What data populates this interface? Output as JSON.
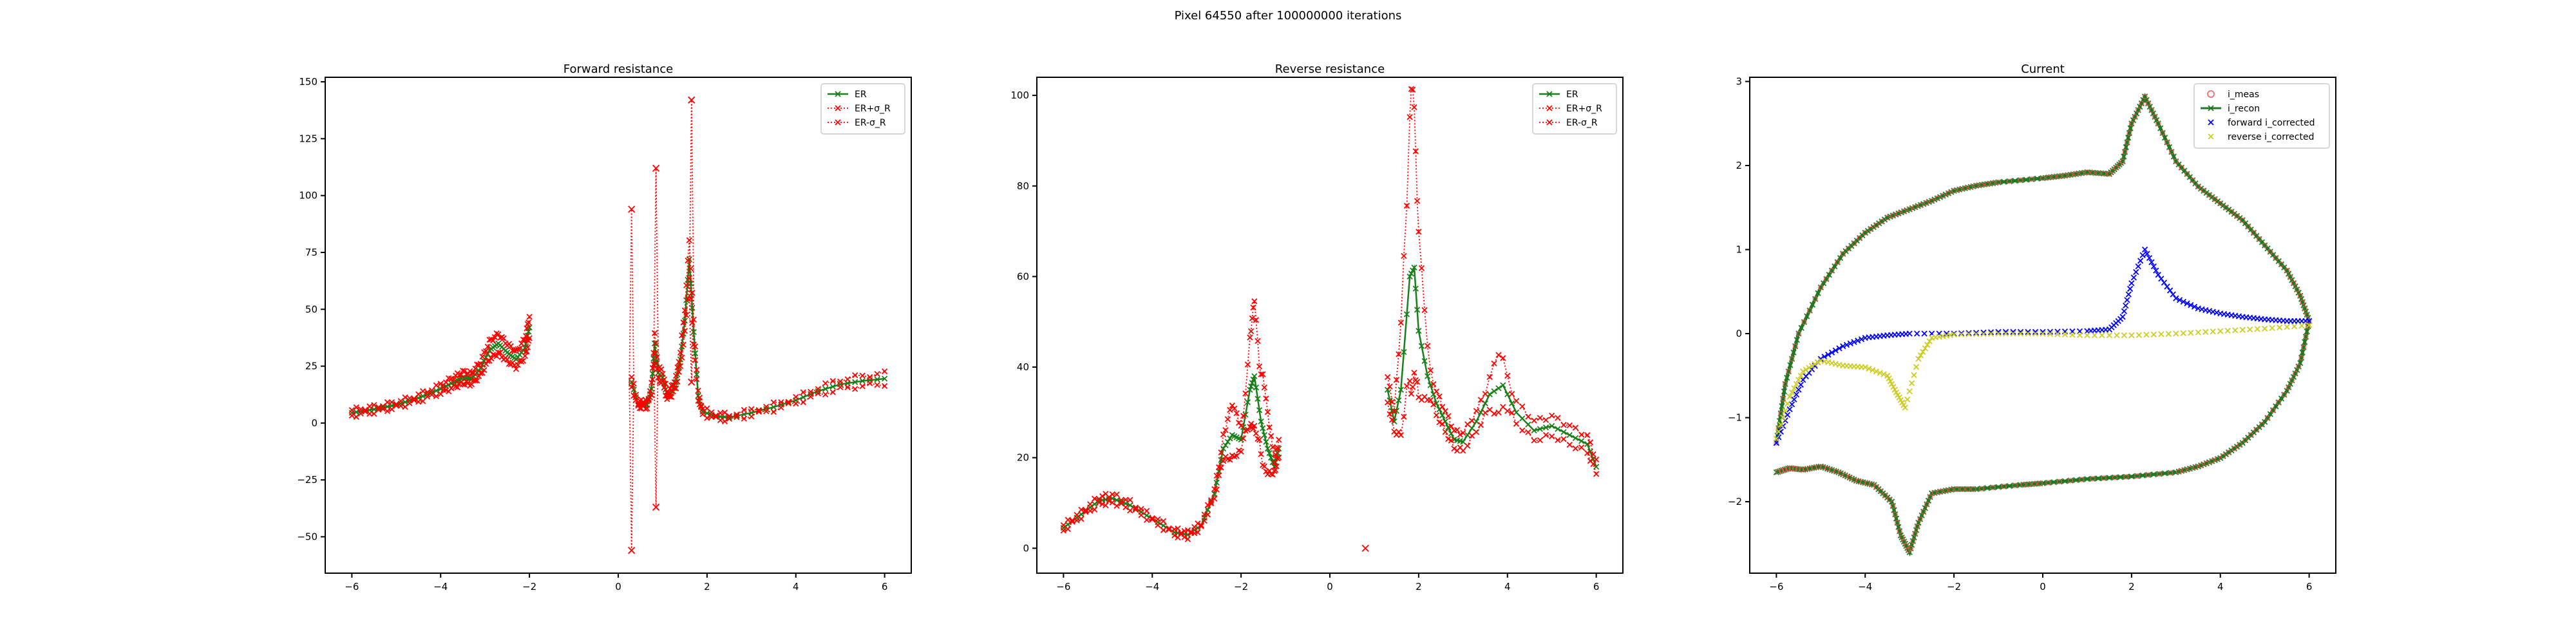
{
  "figure": {
    "title": "Pixel 64550 after 100000000 iterations"
  },
  "colors": {
    "er": "#1a7f1a",
    "er_sigma": "#ff0000",
    "i_meas": "#ff5555",
    "i_recon": "#227722",
    "forward_corrected": "#0000ff",
    "reverse_corrected": "#cccc22"
  },
  "chart_data": [
    {
      "type": "line",
      "title": "Forward resistance",
      "xlim": [
        -6.6,
        6.6
      ],
      "ylim": [
        -66,
        152
      ],
      "x_ticks": [
        -6,
        -4,
        -2,
        0,
        2,
        4,
        6
      ],
      "y_ticks": [
        -50,
        -25,
        0,
        25,
        50,
        75,
        100,
        125,
        150
      ],
      "legend": {
        "placement": "top-right",
        "entries": [
          "ER",
          "ER+σ_R",
          "ER-σ_R"
        ]
      },
      "anchors": {
        "segments": [
          [
            [
              -6.0,
              4.5
            ],
            [
              -5.5,
              6.0
            ],
            [
              -5.0,
              8.0
            ],
            [
              -4.5,
              11.0
            ],
            [
              -4.0,
              15.0
            ],
            [
              -3.7,
              18.0
            ],
            [
              -3.5,
              20.0
            ],
            [
              -3.3,
              19.5
            ],
            [
              -3.1,
              24.0
            ],
            [
              -2.9,
              32.0
            ],
            [
              -2.7,
              35.0
            ],
            [
              -2.5,
              31.0
            ],
            [
              -2.3,
              28.0
            ],
            [
              -2.1,
              33.0
            ],
            [
              -2.0,
              42.0
            ]
          ],
          [
            [
              0.3,
              18.0
            ],
            [
              0.45,
              8.0
            ],
            [
              0.55,
              8.5
            ],
            [
              0.65,
              8.0
            ],
            [
              0.75,
              15.0
            ],
            [
              0.82,
              35.0
            ],
            [
              0.9,
              22.0
            ],
            [
              1.0,
              20.0
            ],
            [
              1.1,
              12.0
            ],
            [
              1.2,
              14.0
            ],
            [
              1.3,
              18.0
            ],
            [
              1.4,
              28.0
            ],
            [
              1.5,
              45.0
            ],
            [
              1.6,
              72.0
            ],
            [
              1.7,
              40.0
            ],
            [
              1.8,
              12.0
            ],
            [
              1.9,
              5.0
            ],
            [
              2.2,
              3.0
            ],
            [
              2.5,
              2.5
            ],
            [
              3.0,
              4.5
            ],
            [
              3.5,
              7.0
            ],
            [
              4.0,
              10.0
            ],
            [
              4.5,
              14.0
            ],
            [
              5.0,
              17.0
            ],
            [
              5.5,
              18.5
            ],
            [
              6.0,
              19.5
            ]
          ]
        ],
        "spikes": [
          [
            0.3,
            94,
            -56
          ],
          [
            0.85,
            112,
            -37
          ],
          [
            1.65,
            142,
            18
          ]
        ]
      }
    },
    {
      "type": "line",
      "title": "Reverse resistance",
      "xlim": [
        -6.6,
        6.6
      ],
      "ylim": [
        -5.5,
        104
      ],
      "x_ticks": [
        -6,
        -4,
        -2,
        0,
        2,
        4,
        6
      ],
      "y_ticks": [
        0,
        20,
        40,
        60,
        80,
        100
      ],
      "legend": {
        "placement": "top-right",
        "entries": [
          "ER",
          "ER+σ_R",
          "ER-σ_R"
        ]
      },
      "anchors": {
        "segments": [
          [
            [
              -6.0,
              4.5
            ],
            [
              -5.6,
              7.5
            ],
            [
              -5.2,
              10.5
            ],
            [
              -4.9,
              11.0
            ],
            [
              -4.5,
              9.5
            ],
            [
              -4.0,
              6.5
            ],
            [
              -3.5,
              3.5
            ],
            [
              -3.2,
              3.0
            ],
            [
              -2.9,
              5.0
            ],
            [
              -2.6,
              12.0
            ],
            [
              -2.4,
              22.0
            ],
            [
              -2.2,
              25.0
            ],
            [
              -2.0,
              24.0
            ],
            [
              -1.8,
              35.0
            ],
            [
              -1.7,
              38.0
            ],
            [
              -1.55,
              28.0
            ],
            [
              -1.4,
              22.0
            ],
            [
              -1.25,
              18.0
            ],
            [
              -1.15,
              22.0
            ]
          ],
          [
            [
              0.8,
              0.0
            ]
          ],
          [
            [
              1.3,
              35.0
            ],
            [
              1.45,
              28.0
            ],
            [
              1.6,
              35.0
            ],
            [
              1.8,
              60.0
            ],
            [
              1.9,
              62.0
            ],
            [
              2.0,
              48.0
            ],
            [
              2.2,
              38.0
            ],
            [
              2.4,
              32.0
            ],
            [
              2.6,
              28.0
            ],
            [
              2.8,
              24.0
            ],
            [
              3.0,
              23.5
            ],
            [
              3.3,
              28.0
            ],
            [
              3.6,
              34.0
            ],
            [
              3.9,
              36.0
            ],
            [
              4.2,
              30.0
            ],
            [
              4.6,
              26.0
            ],
            [
              5.0,
              27.0
            ],
            [
              5.4,
              25.0
            ],
            [
              5.8,
              23.0
            ],
            [
              6.0,
              18.0
            ]
          ]
        ],
        "sigma_offsets": [
          [
            -2.2,
            5
          ],
          [
            -1.7,
            14
          ],
          [
            -1.5,
            10
          ],
          [
            1.7,
            20
          ],
          [
            1.85,
            38
          ],
          [
            2.0,
            18
          ],
          [
            3.8,
            5
          ]
        ]
      }
    },
    {
      "type": "scatter",
      "title": "Current",
      "xlim": [
        -6.6,
        6.6
      ],
      "ylim": [
        -2.85,
        3.05
      ],
      "x_ticks": [
        -6,
        -4,
        -2,
        0,
        2,
        4,
        6
      ],
      "y_ticks": [
        -2,
        -1,
        0,
        1,
        2,
        3
      ],
      "legend": {
        "placement": "top-right",
        "entries": [
          "i_meas",
          "i_recon",
          "forward i_corrected",
          "reverse i_corrected"
        ]
      },
      "anchors": {
        "upper_loop": [
          [
            -6.0,
            -1.3
          ],
          [
            -5.8,
            -0.6
          ],
          [
            -5.5,
            0.0
          ],
          [
            -5.0,
            0.55
          ],
          [
            -4.5,
            0.95
          ],
          [
            -4.0,
            1.2
          ],
          [
            -3.5,
            1.38
          ],
          [
            -3.0,
            1.48
          ],
          [
            -2.5,
            1.58
          ],
          [
            -2.0,
            1.7
          ],
          [
            -1.5,
            1.76
          ],
          [
            -1.0,
            1.8
          ],
          [
            0.0,
            1.85
          ],
          [
            0.5,
            1.88
          ],
          [
            1.0,
            1.92
          ],
          [
            1.5,
            1.9
          ],
          [
            1.8,
            2.05
          ],
          [
            2.0,
            2.5
          ],
          [
            2.3,
            2.82
          ],
          [
            2.6,
            2.5
          ],
          [
            3.0,
            2.05
          ],
          [
            3.5,
            1.75
          ],
          [
            4.0,
            1.55
          ],
          [
            4.5,
            1.35
          ],
          [
            5.0,
            1.05
          ],
          [
            5.5,
            0.75
          ],
          [
            5.8,
            0.45
          ],
          [
            6.0,
            0.15
          ]
        ],
        "lower_loop": [
          [
            6.0,
            0.15
          ],
          [
            5.8,
            -0.35
          ],
          [
            5.5,
            -0.68
          ],
          [
            5.0,
            -1.05
          ],
          [
            4.5,
            -1.3
          ],
          [
            4.0,
            -1.48
          ],
          [
            3.5,
            -1.58
          ],
          [
            3.0,
            -1.65
          ],
          [
            2.0,
            -1.7
          ],
          [
            1.0,
            -1.73
          ],
          [
            0.0,
            -1.78
          ],
          [
            -0.5,
            -1.8
          ],
          [
            -1.5,
            -1.85
          ],
          [
            -2.0,
            -1.85
          ],
          [
            -2.5,
            -1.9
          ],
          [
            -2.8,
            -2.25
          ],
          [
            -3.0,
            -2.6
          ],
          [
            -3.2,
            -2.4
          ],
          [
            -3.4,
            -2.0
          ],
          [
            -3.8,
            -1.8
          ],
          [
            -4.2,
            -1.75
          ],
          [
            -4.6,
            -1.65
          ],
          [
            -5.0,
            -1.58
          ],
          [
            -5.4,
            -1.62
          ],
          [
            -5.7,
            -1.6
          ],
          [
            -6.0,
            -1.65
          ]
        ],
        "forward_i_corrected": [
          [
            -6.0,
            -1.3
          ],
          [
            -5.7,
            -0.9
          ],
          [
            -5.4,
            -0.55
          ],
          [
            -5.0,
            -0.3
          ],
          [
            -4.5,
            -0.15
          ],
          [
            -4.0,
            -0.05
          ],
          [
            -3.5,
            -0.02
          ],
          [
            -3.0,
            0.0
          ],
          [
            -2.0,
            0.0
          ],
          [
            -1.0,
            0.02
          ],
          [
            0.0,
            0.02
          ],
          [
            1.0,
            0.03
          ],
          [
            1.5,
            0.05
          ],
          [
            1.8,
            0.2
          ],
          [
            2.0,
            0.6
          ],
          [
            2.3,
            1.0
          ],
          [
            2.6,
            0.7
          ],
          [
            3.0,
            0.42
          ],
          [
            3.5,
            0.3
          ],
          [
            4.0,
            0.24
          ],
          [
            4.5,
            0.2
          ],
          [
            5.0,
            0.17
          ],
          [
            5.5,
            0.15
          ],
          [
            6.0,
            0.15
          ]
        ],
        "reverse_i_corrected": [
          [
            6.0,
            0.1
          ],
          [
            5.0,
            0.06
          ],
          [
            4.0,
            0.03
          ],
          [
            3.0,
            0.0
          ],
          [
            2.0,
            -0.02
          ],
          [
            1.0,
            -0.02
          ],
          [
            0.0,
            0.0
          ],
          [
            -1.0,
            0.0
          ],
          [
            -2.0,
            -0.01
          ],
          [
            -2.5,
            -0.05
          ],
          [
            -2.8,
            -0.3
          ],
          [
            -3.1,
            -0.88
          ],
          [
            -3.3,
            -0.7
          ],
          [
            -3.5,
            -0.5
          ],
          [
            -4.0,
            -0.4
          ],
          [
            -4.5,
            -0.38
          ],
          [
            -5.0,
            -0.32
          ],
          [
            -5.4,
            -0.45
          ],
          [
            -5.7,
            -0.75
          ],
          [
            -6.0,
            -1.25
          ]
        ]
      }
    }
  ]
}
